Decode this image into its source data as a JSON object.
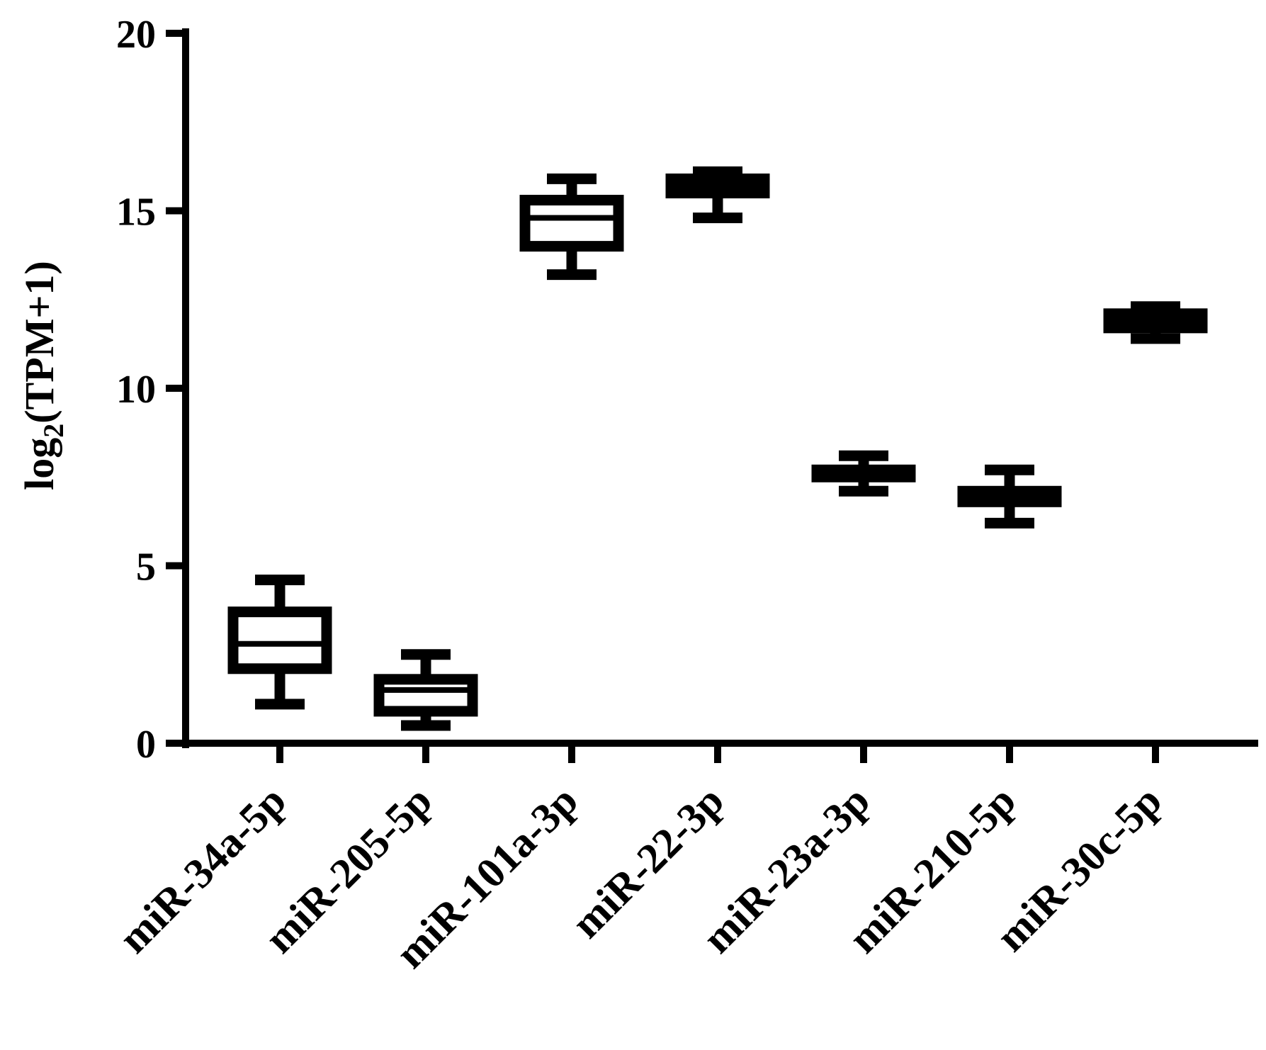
{
  "chart_data": {
    "type": "box",
    "title": "",
    "xlabel": "",
    "ylabel": {
      "prefix": "log",
      "subscript": "2",
      "suffix": "(TPM+1)"
    },
    "ylim": [
      0,
      20
    ],
    "yticks": [
      "0",
      "5",
      "10",
      "15",
      "20"
    ],
    "grid": false,
    "legend": "none",
    "colors": {
      "stroke": "#000000",
      "background": "#ffffff"
    },
    "categories": [
      "miR-34a-5p",
      "miR-205-5p",
      "miR-101a-3p",
      "miR-22-3p",
      "miR-23a-3p",
      "miR-210-5p",
      "miR-30c-5p"
    ],
    "boxes": [
      {
        "min": 1.1,
        "q1": 2.1,
        "median": 2.8,
        "q3": 3.7,
        "max": 4.6
      },
      {
        "min": 0.5,
        "q1": 0.9,
        "median": 1.5,
        "q3": 1.8,
        "max": 2.5
      },
      {
        "min": 13.2,
        "q1": 14.0,
        "median": 14.8,
        "q3": 15.3,
        "max": 15.9
      },
      {
        "min": 14.8,
        "q1": 15.5,
        "median": 15.7,
        "q3": 15.9,
        "max": 16.1
      },
      {
        "min": 7.1,
        "q1": 7.5,
        "median": 7.6,
        "q3": 7.7,
        "max": 8.1
      },
      {
        "min": 6.2,
        "q1": 6.8,
        "median": 7.0,
        "q3": 7.1,
        "max": 7.7
      },
      {
        "min": 11.4,
        "q1": 11.7,
        "median": 11.9,
        "q3": 12.1,
        "max": 12.3
      }
    ]
  }
}
